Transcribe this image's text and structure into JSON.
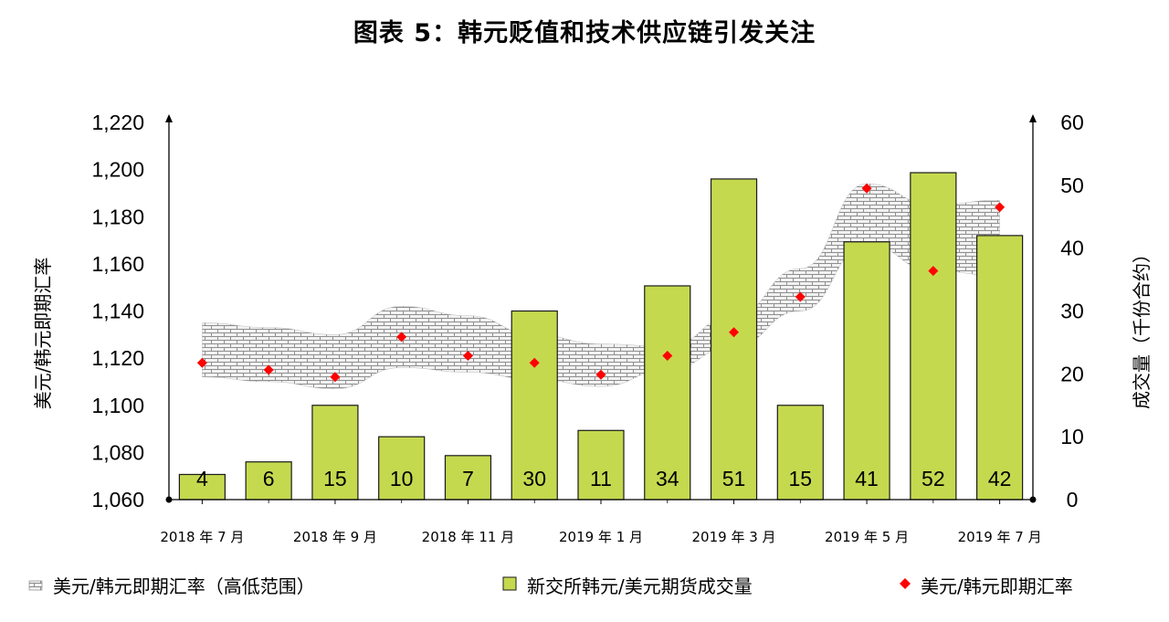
{
  "title": "图表 5：韩元贬值和技术供应链引发关注",
  "legend": {
    "range_label": "美元/韩元即期汇率（高低范围）",
    "volume_label": "新交所韩元/美元期货成交量",
    "spot_label": "美元/韩元即期汇率"
  },
  "colors": {
    "bar_fill": "#c5d94f",
    "bar_stroke": "#1a1a1a",
    "spot_marker": "#ff0000",
    "range_pattern": "#888888"
  },
  "chart_data": {
    "type": "bar",
    "title": "图表 5：韩元贬值和技术供应链引发关注",
    "ylabel_left": "美元/韩元即期汇率",
    "ylabel_right": "成交量（千份合约）",
    "ylim_left": [
      1060,
      1220
    ],
    "ylim_right": [
      0,
      60
    ],
    "yticks_left": [
      "1,060",
      "1,080",
      "1,100",
      "1,120",
      "1,140",
      "1,160",
      "1,180",
      "1,200",
      "1,220"
    ],
    "yticks_right": [
      "0",
      "10",
      "20",
      "30",
      "40",
      "50",
      "60"
    ],
    "x_tick_labels": [
      "2018 年 7 月",
      "2018 年 9 月",
      "2018 年 11 月",
      "2019 年 1 月",
      "2019 年 3 月",
      "2019 年 5 月",
      "2019 年 7 月"
    ],
    "series": [
      {
        "name": "新交所韩元/美元期货成交量",
        "axis": "right",
        "type": "bar",
        "values": [
          4,
          6,
          15,
          10,
          7,
          30,
          11,
          34,
          51,
          15,
          41,
          52,
          42
        ]
      },
      {
        "name": "美元/韩元即期汇率",
        "axis": "left",
        "type": "scatter",
        "values": [
          1118,
          1115,
          1112,
          1129,
          1121,
          1118,
          1113,
          1121,
          1131,
          1146,
          1192,
          1157,
          1184
        ]
      },
      {
        "name": "美元/韩元即期汇率（高低范围）",
        "axis": "left",
        "type": "range",
        "high": [
          1135,
          1133,
          1130,
          1142,
          1138,
          1130,
          1126,
          1125,
          1138,
          1158,
          1194,
          1185,
          1187
        ],
        "low": [
          1112,
          1110,
          1107,
          1116,
          1114,
          1111,
          1108,
          1115,
          1125,
          1140,
          1168,
          1157,
          1155
        ]
      }
    ],
    "legend_position": "bottom",
    "grid": false
  }
}
